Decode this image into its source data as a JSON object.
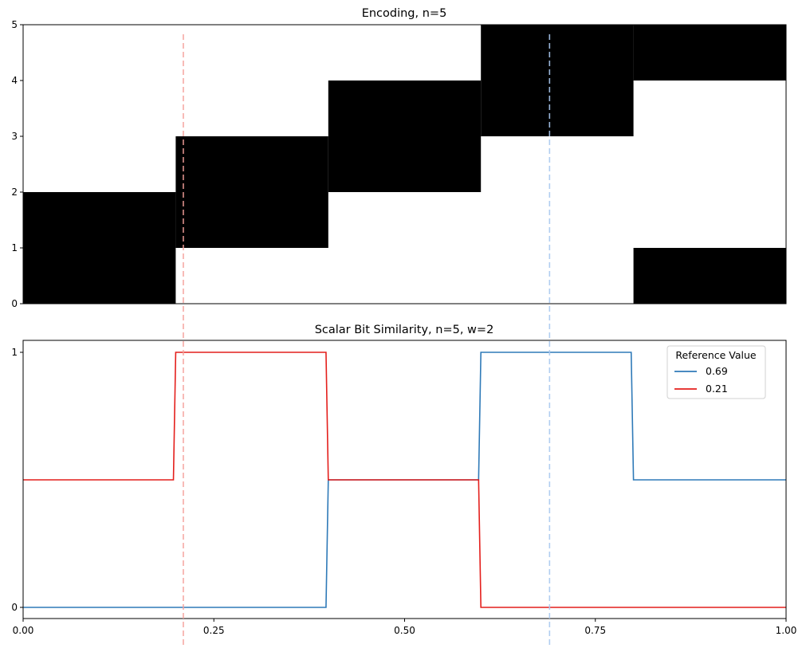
{
  "chart_data": [
    {
      "type": "heatmap",
      "title": "Encoding, n=5",
      "xlim": [
        0,
        1
      ],
      "ylim": [
        0,
        5
      ],
      "yticks": [
        "0",
        "1",
        "2",
        "3",
        "4",
        "5"
      ],
      "grid": false,
      "cells": [
        {
          "x0": 0.0,
          "x1": 0.2,
          "y0": 0,
          "y1": 2
        },
        {
          "x0": 0.2,
          "x1": 0.4,
          "y0": 1,
          "y1": 3
        },
        {
          "x0": 0.4,
          "x1": 0.6,
          "y0": 2,
          "y1": 4
        },
        {
          "x0": 0.6,
          "x1": 0.8,
          "y0": 3,
          "y1": 5
        },
        {
          "x0": 0.8,
          "x1": 1.0,
          "y0": 4,
          "y1": 5
        },
        {
          "x0": 0.8,
          "x1": 1.0,
          "y0": 0,
          "y1": 1
        }
      ],
      "cell_color": "#000000"
    },
    {
      "type": "line",
      "title": "Scalar Bit Similarity, n=5, w=2",
      "xlim": [
        0,
        1
      ],
      "ylim": [
        0,
        1
      ],
      "xticks": [
        "0.00",
        "0.25",
        "0.50",
        "0.75",
        "1.00"
      ],
      "xtick_values": [
        0,
        0.25,
        0.5,
        0.75,
        1.0
      ],
      "yticks": [
        "0",
        "1"
      ],
      "grid": false,
      "legend": {
        "title": "Reference Value",
        "placement": "top-right"
      },
      "series": [
        {
          "name": "0.69",
          "color": "#2f7ab8",
          "points": [
            [
              0.0,
              0
            ],
            [
              0.397,
              0
            ],
            [
              0.4,
              0.5
            ],
            [
              0.597,
              0.5
            ],
            [
              0.6,
              1
            ],
            [
              0.797,
              1
            ],
            [
              0.8,
              0.5
            ],
            [
              1.0,
              0.5
            ]
          ]
        },
        {
          "name": "0.21",
          "color": "#e41f1c",
          "points": [
            [
              0.0,
              0.5
            ],
            [
              0.197,
              0.5
            ],
            [
              0.2,
              1
            ],
            [
              0.397,
              1
            ],
            [
              0.4,
              0.5
            ],
            [
              0.597,
              0.5
            ],
            [
              0.6,
              0
            ],
            [
              1.0,
              0
            ]
          ]
        }
      ]
    }
  ],
  "reference_lines": [
    {
      "value": 0.21,
      "color": "#f4a09a"
    },
    {
      "value": 0.69,
      "color": "#a8c8ef"
    }
  ]
}
